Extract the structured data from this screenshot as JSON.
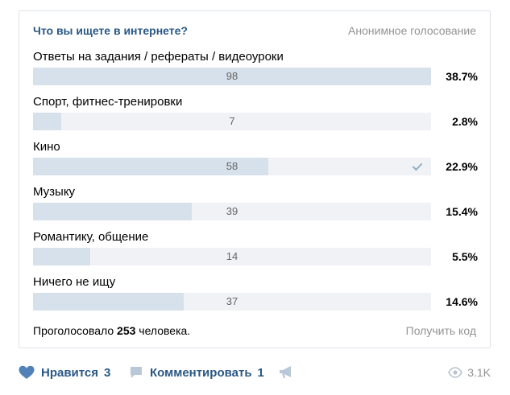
{
  "poll": {
    "title": "Что вы ищете в интернете?",
    "anonymous_label": "Анонимное голосование",
    "options": [
      {
        "label": "Ответы на задания / рефераты / видеоуроки",
        "count": "98",
        "percent": "38.7%",
        "share": 1.0,
        "voted": false
      },
      {
        "label": "Спорт, фитнес-тренировки",
        "count": "7",
        "percent": "2.8%",
        "share": 0.071,
        "voted": false
      },
      {
        "label": "Кино",
        "count": "58",
        "percent": "22.9%",
        "share": 0.592,
        "voted": true
      },
      {
        "label": "Музыку",
        "count": "39",
        "percent": "15.4%",
        "share": 0.398,
        "voted": false
      },
      {
        "label": "Романтику, общение",
        "count": "14",
        "percent": "5.5%",
        "share": 0.143,
        "voted": false
      },
      {
        "label": "Ничего не ищу",
        "count": "37",
        "percent": "14.6%",
        "share": 0.378,
        "voted": false
      }
    ],
    "voters_prefix": "Проголосовало",
    "voters_count": "253",
    "voters_suffix": "человека.",
    "get_code_label": "Получить код"
  },
  "actions": {
    "like_label": "Нравится",
    "like_count": "3",
    "comment_label": "Комментировать",
    "comment_count": "1",
    "views_count": "3.1K"
  },
  "colors": {
    "link": "#2a5885",
    "muted": "#939393",
    "bar_fill": "#d7e1eb",
    "bar_track": "#f0f2f5",
    "check": "#8fadc8",
    "icon": "#5181b8"
  }
}
